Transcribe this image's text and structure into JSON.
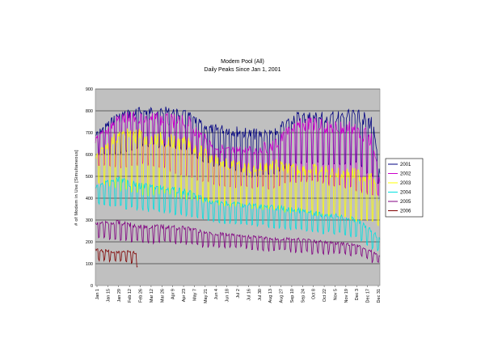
{
  "chart_data": {
    "type": "line",
    "title": "Modem Pool (All)",
    "subtitle": "Daily Peaks Since Jan 1, 2001",
    "xlabel": "",
    "ylabel": "# of Modem in Use [Simultaneous]",
    "ylim": [
      0,
      900
    ],
    "y_ticks": [
      0,
      100,
      200,
      300,
      400,
      500,
      600,
      700,
      800,
      900
    ],
    "grid": true,
    "legend_position": "right",
    "x_tick_labels": [
      "Jan 1",
      "Jan 15",
      "Jan 29",
      "Feb 12",
      "Feb 26",
      "Mar 12",
      "Mar 26",
      "Apr 9",
      "Apr 23",
      "May 7",
      "May 21",
      "Jun 4",
      "Jun 18",
      "Jul 2",
      "Jul 16",
      "Jul 30",
      "Aug 13",
      "Aug 27",
      "Sep 10",
      "Sep 24",
      "Oct 8",
      "Oct 22",
      "Nov 5",
      "Nov 19",
      "Dec 3",
      "Dec 17",
      "Dec 31"
    ],
    "x_unit": "day of year",
    "series": [
      {
        "name": "2001",
        "color": "#000080",
        "days": [
          1,
          30,
          60,
          90,
          120,
          145,
          170,
          200,
          230,
          255,
          280,
          310,
          335,
          355,
          365
        ],
        "peaks": [
          700,
          800,
          820,
          820,
          800,
          740,
          740,
          720,
          720,
          800,
          800,
          800,
          810,
          780,
          520
        ],
        "troughs": [
          600,
          600,
          640,
          640,
          620,
          560,
          540,
          500,
          520,
          560,
          560,
          560,
          560,
          500,
          460
        ]
      },
      {
        "name": "2002",
        "color": "#cc00cc",
        "days": [
          1,
          30,
          60,
          90,
          120,
          145,
          170,
          200,
          230,
          255,
          280,
          310,
          335,
          355,
          365
        ],
        "peaks": [
          680,
          790,
          800,
          790,
          780,
          680,
          640,
          640,
          670,
          760,
          780,
          760,
          760,
          700,
          480
        ],
        "troughs": [
          560,
          540,
          560,
          540,
          500,
          470,
          460,
          450,
          450,
          480,
          480,
          460,
          440,
          420,
          410
        ]
      },
      {
        "name": "2003",
        "color": "#ffff00",
        "days": [
          1,
          30,
          60,
          90,
          120,
          145,
          170,
          200,
          230,
          255,
          280,
          310,
          335,
          355,
          365
        ],
        "peaks": [
          600,
          720,
          720,
          700,
          680,
          620,
          580,
          560,
          580,
          560,
          560,
          540,
          540,
          520,
          400
        ],
        "troughs": [
          480,
          440,
          420,
          420,
          400,
          380,
          370,
          360,
          350,
          340,
          330,
          320,
          300,
          290,
          280
        ]
      },
      {
        "name": "2004",
        "color": "#00e0e0",
        "days": [
          1,
          30,
          60,
          90,
          120,
          145,
          170,
          200,
          230,
          255,
          280,
          310,
          335,
          355,
          365
        ],
        "peaks": [
          460,
          500,
          470,
          460,
          440,
          400,
          390,
          380,
          370,
          360,
          340,
          330,
          310,
          260,
          220
        ],
        "troughs": [
          380,
          360,
          350,
          340,
          320,
          300,
          290,
          280,
          270,
          260,
          250,
          240,
          220,
          170,
          160
        ]
      },
      {
        "name": "2005",
        "color": "#800080",
        "days": [
          1,
          30,
          60,
          90,
          120,
          145,
          170,
          200,
          230,
          255,
          280,
          310,
          335,
          355,
          365
        ],
        "peaks": [
          290,
          300,
          280,
          280,
          270,
          250,
          240,
          230,
          220,
          220,
          210,
          200,
          190,
          160,
          140
        ],
        "troughs": [
          220,
          210,
          200,
          200,
          190,
          180,
          180,
          170,
          160,
          160,
          150,
          150,
          140,
          110,
          100
        ]
      },
      {
        "name": "2006",
        "color": "#800000",
        "days": [
          1,
          15,
          30,
          45,
          55
        ],
        "peaks": [
          170,
          165,
          160,
          165,
          150
        ],
        "troughs": [
          120,
          115,
          110,
          115,
          90
        ]
      }
    ]
  }
}
